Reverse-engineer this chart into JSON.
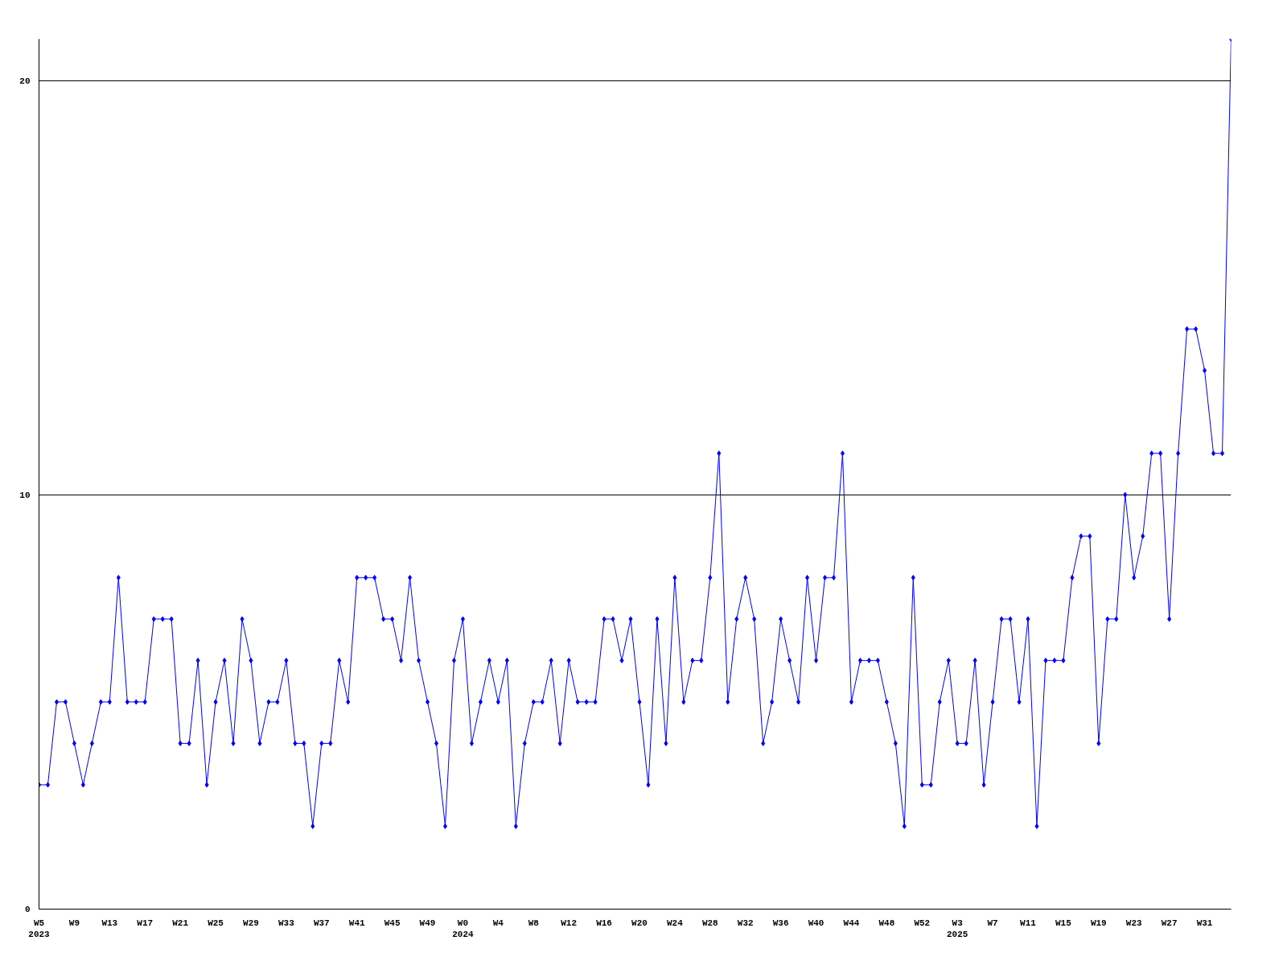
{
  "chart_data": {
    "type": "line",
    "categories": [
      "W5\n2023",
      null,
      null,
      null,
      "W9",
      null,
      null,
      null,
      "W13",
      null,
      null,
      null,
      "W17",
      null,
      null,
      null,
      "W21",
      null,
      null,
      null,
      "W25",
      null,
      null,
      null,
      "W29",
      null,
      null,
      null,
      "W33",
      null,
      null,
      null,
      "W37",
      null,
      null,
      null,
      "W41",
      null,
      null,
      null,
      "W45",
      null,
      null,
      null,
      "W49",
      null,
      null,
      null,
      "W0\n2024",
      null,
      null,
      null,
      "W4",
      null,
      null,
      null,
      "W8",
      null,
      null,
      null,
      "W12",
      null,
      null,
      null,
      "W16",
      null,
      null,
      null,
      "W20",
      null,
      null,
      null,
      "W24",
      null,
      null,
      null,
      "W28",
      null,
      null,
      null,
      "W32",
      null,
      null,
      null,
      "W36",
      null,
      null,
      null,
      "W40",
      null,
      null,
      null,
      "W44",
      null,
      null,
      null,
      "W48",
      null,
      null,
      null,
      "W52",
      null,
      null,
      null,
      "W3\n2025",
      null,
      null,
      null,
      "W7",
      null,
      null,
      null,
      "W11",
      null,
      null,
      null,
      "W15",
      null,
      null,
      null,
      "W19",
      null,
      null,
      null,
      "W23",
      null,
      null,
      null,
      "W27",
      null,
      null,
      null,
      "W31",
      null,
      null,
      null
    ],
    "series": [
      {
        "color": "#0000ff",
        "values": [
          3,
          3,
          5,
          5,
          4,
          3,
          4,
          5,
          5,
          8,
          5,
          5,
          5,
          7,
          7,
          7,
          4,
          4,
          6,
          3,
          5,
          6,
          4,
          7,
          6,
          4,
          5,
          5,
          6,
          4,
          4,
          2,
          4,
          4,
          6,
          5,
          8,
          8,
          8,
          7,
          7,
          6,
          8,
          6,
          5,
          4,
          2,
          6,
          7,
          4,
          5,
          6,
          5,
          6,
          2,
          4,
          5,
          5,
          6,
          4,
          6,
          5,
          5,
          5,
          7,
          7,
          6,
          7,
          5,
          3,
          7,
          4,
          8,
          5,
          6,
          6,
          8,
          11,
          5,
          7,
          8,
          7,
          4,
          5,
          7,
          6,
          5,
          8,
          6,
          8,
          8,
          11,
          5,
          6,
          6,
          6,
          5,
          4,
          2,
          8,
          3,
          3,
          5,
          6,
          4,
          4,
          6,
          3,
          5,
          7,
          7,
          5,
          7,
          2,
          6,
          6,
          6,
          8,
          9,
          9,
          4,
          7,
          7,
          10,
          8,
          9,
          11,
          11,
          7,
          11,
          14,
          14,
          13,
          11,
          11,
          21
        ]
      }
    ],
    "ylim": [
      0,
      21
    ],
    "yticks": [
      0,
      10,
      20
    ],
    "grid": "y",
    "marker": "diamond",
    "line_style": "solid"
  }
}
